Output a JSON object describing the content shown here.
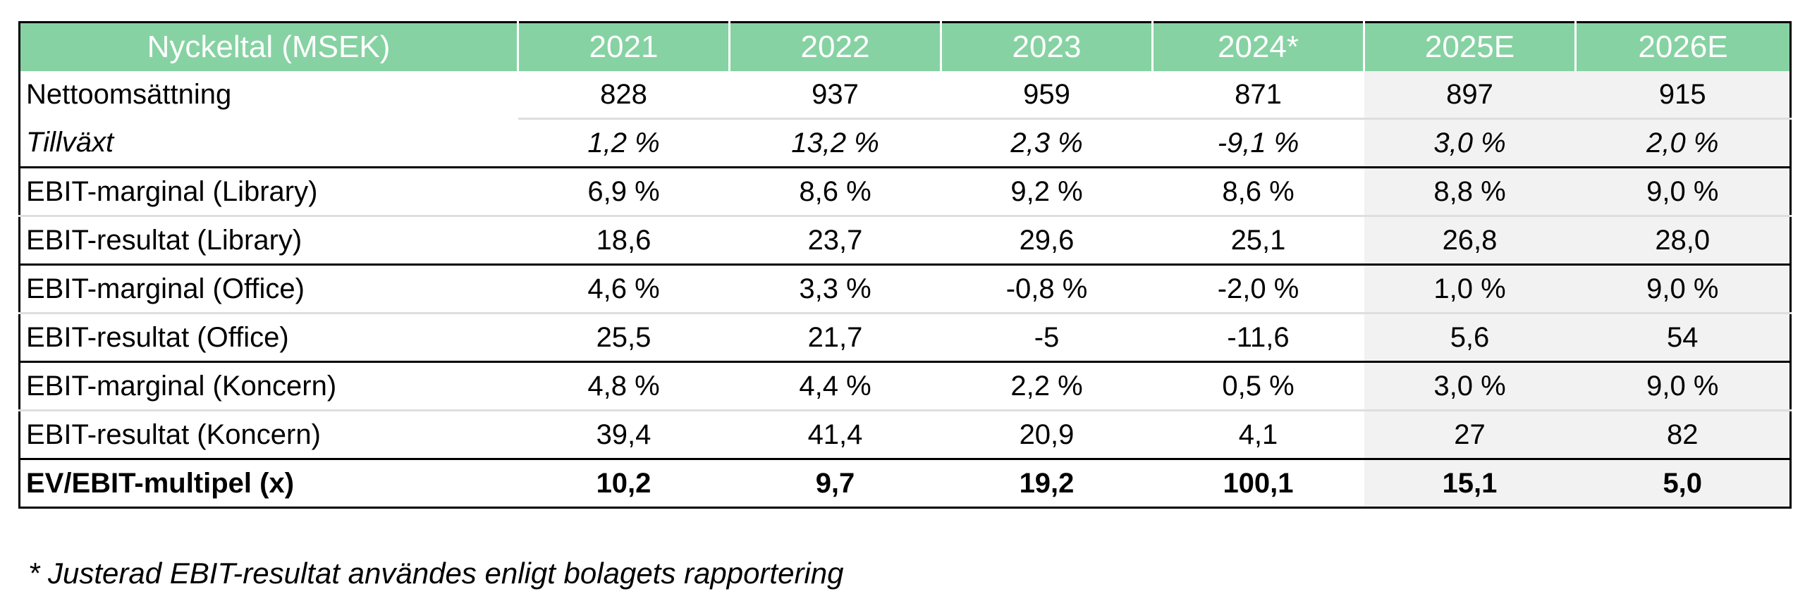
{
  "table": {
    "headers": [
      "Nyckeltal (MSEK)",
      "2021",
      "2022",
      "2023",
      "2024*",
      "2025E",
      "2026E"
    ],
    "rows": [
      {
        "label": "Nettoomsättning",
        "values": [
          "828",
          "937",
          "959",
          "871",
          "897",
          "915"
        ]
      },
      {
        "label": "Tillväxt",
        "values": [
          "1,2 %",
          "13,2 %",
          "2,3 %",
          "-9,1 %",
          "3,0 %",
          "2,0 %"
        ]
      },
      {
        "label": "EBIT-marginal (Library)",
        "values": [
          "6,9 %",
          "8,6 %",
          "9,2 %",
          "8,6 %",
          "8,8 %",
          "9,0 %"
        ]
      },
      {
        "label": "EBIT-resultat (Library)",
        "values": [
          "18,6",
          "23,7",
          "29,6",
          "25,1",
          "26,8",
          "28,0"
        ]
      },
      {
        "label": "EBIT-marginal (Office)",
        "values": [
          "4,6 %",
          "3,3 %",
          "-0,8 %",
          "-2,0 %",
          "1,0 %",
          "9,0 %"
        ]
      },
      {
        "label": "EBIT-resultat (Office)",
        "values": [
          "25,5",
          "21,7",
          "-5",
          "-11,6",
          "5,6",
          "54"
        ]
      },
      {
        "label": "EBIT-marginal (Koncern)",
        "values": [
          "4,8 %",
          "4,4 %",
          "2,2 %",
          "0,5 %",
          "3,0 %",
          "9,0 %"
        ]
      },
      {
        "label": "EBIT-resultat (Koncern)",
        "values": [
          "39,4",
          "41,4",
          "20,9",
          "4,1",
          "27",
          "82"
        ]
      },
      {
        "label": "EV/EBIT-multipel (x)",
        "values": [
          "10,2",
          "9,7",
          "19,2",
          "100,1",
          "15,1",
          "5,0"
        ]
      }
    ]
  },
  "footnote": "* Justerad EBIT-resultat användes enligt bolagets rapportering",
  "colors": {
    "header_bg": "#86d2a3",
    "header_text": "#ffffff",
    "estimate_bg": "#f2f2f2",
    "separator": "#dedede",
    "border": "#000000"
  }
}
